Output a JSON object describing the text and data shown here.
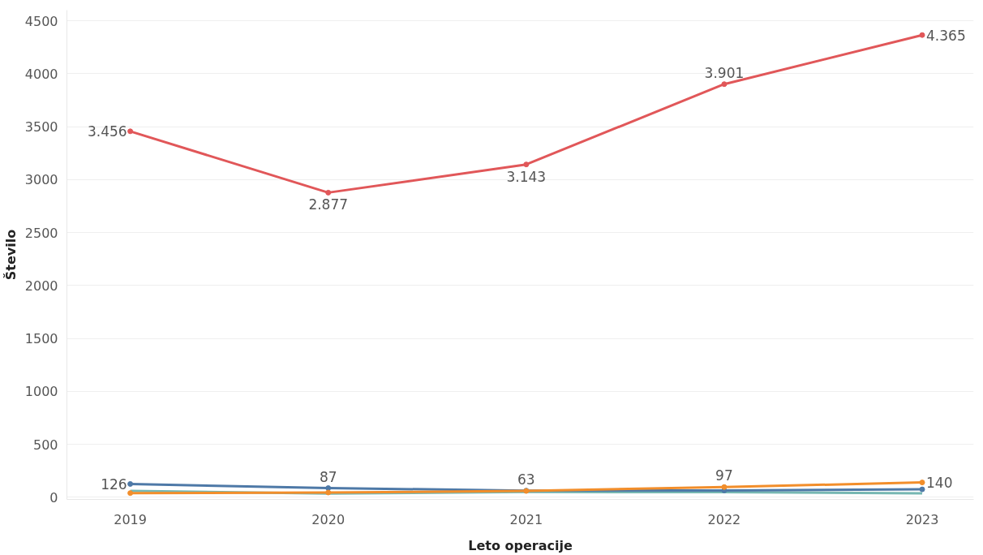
{
  "chart_data": {
    "type": "line",
    "xlabel": "Leto operacije",
    "ylabel": "Število",
    "categories": [
      "2019",
      "2020",
      "2021",
      "2022",
      "2023"
    ],
    "ylim": [
      -20,
      4600
    ],
    "yticks": [
      0,
      500,
      1000,
      1500,
      2000,
      2500,
      3000,
      3500,
      4000,
      4500
    ],
    "grid": "y",
    "marker": "circle",
    "line_style": "solid",
    "series": [
      {
        "color": "#e15759",
        "values": [
          3456,
          2877,
          3143,
          3901,
          4365
        ],
        "value_labels": [
          "3.456",
          "2.877",
          "3.143",
          "3.901",
          "4.365"
        ]
      },
      {
        "color": "#76b7b2",
        "marker": "none",
        "values": [
          60,
          35,
          50,
          48,
          38
        ]
      },
      {
        "color": "#4e79a7",
        "values": [
          126,
          87,
          63,
          65,
          75
        ],
        "value_labels": [
          "126",
          "87",
          "63",
          null,
          null
        ]
      },
      {
        "color": "#f28e2b",
        "values": [
          40,
          45,
          60,
          97,
          140
        ],
        "value_labels": [
          null,
          null,
          null,
          "97",
          "140"
        ]
      }
    ]
  }
}
